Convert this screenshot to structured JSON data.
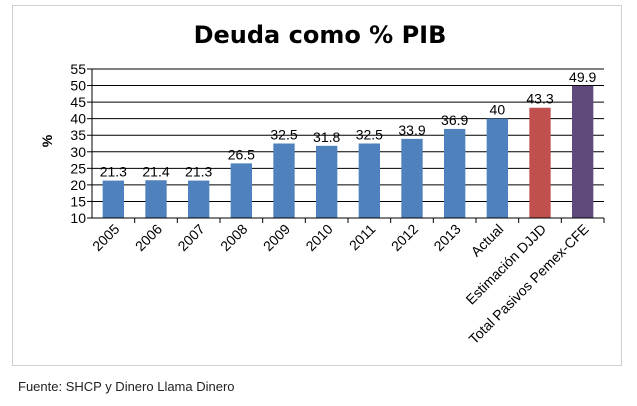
{
  "chart_data": {
    "type": "bar",
    "title": "Deuda como % PIB",
    "xlabel": "",
    "ylabel": "%",
    "categories": [
      "2005",
      "2006",
      "2007",
      "2008",
      "2009",
      "2010",
      "2011",
      "2012",
      "2013",
      "Actual",
      "Estimación DJJD",
      "Total Pasivos Pemex-CFE"
    ],
    "values": [
      21.3,
      21.4,
      21.3,
      26.5,
      32.5,
      31.8,
      32.5,
      33.9,
      36.9,
      40,
      43.3,
      49.9
    ],
    "data_labels": [
      "21.3",
      "21.4",
      "21.3",
      "26.5",
      "32.5",
      "31.8",
      "32.5",
      "33.9",
      "36.9",
      "40",
      "43.3",
      "49.9"
    ],
    "colors": [
      "#4f81bd",
      "#4f81bd",
      "#4f81bd",
      "#4f81bd",
      "#4f81bd",
      "#4f81bd",
      "#4f81bd",
      "#4f81bd",
      "#4f81bd",
      "#4f81bd",
      "#c0504d",
      "#604a7b"
    ],
    "ylim": [
      10,
      55
    ],
    "yticks": [
      "10",
      "15",
      "20",
      "25",
      "30",
      "35",
      "40",
      "45",
      "50",
      "55"
    ],
    "grid": true,
    "legend": "none"
  },
  "source_note": "Fuente: SHCP y Dinero Llama Dinero"
}
